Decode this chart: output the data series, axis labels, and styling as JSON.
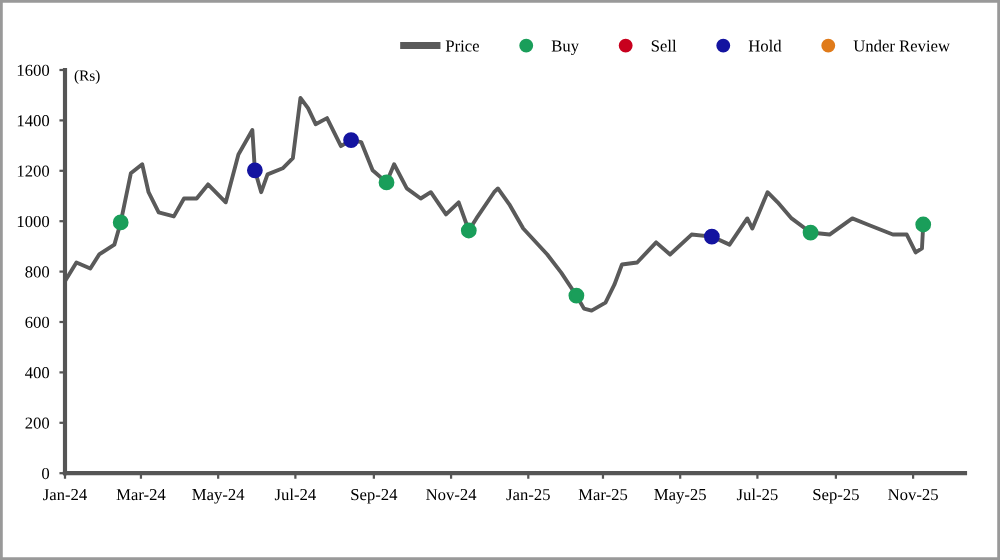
{
  "chart_data": {
    "type": "line",
    "ylabel": "(Rs)",
    "xlim": [
      "2024-01-01",
      "2025-12-12"
    ],
    "xticks": [
      {
        "value": "2024-01-01",
        "label": "Jan-24"
      },
      {
        "value": "2024-03-01",
        "label": "Mar-24"
      },
      {
        "value": "2024-05-01",
        "label": "May-24"
      },
      {
        "value": "2024-07-01",
        "label": "Jul-24"
      },
      {
        "value": "2024-09-01",
        "label": "Sep-24"
      },
      {
        "value": "2024-11-01",
        "label": "Nov-24"
      },
      {
        "value": "2025-01-01",
        "label": "Jan-25"
      },
      {
        "value": "2025-03-01",
        "label": "Mar-25"
      },
      {
        "value": "2025-05-01",
        "label": "May-25"
      },
      {
        "value": "2025-07-01",
        "label": "Jul-25"
      },
      {
        "value": "2025-09-01",
        "label": "Sep-25"
      },
      {
        "value": "2025-11-01",
        "label": "Nov-25"
      }
    ],
    "ylim": [
      0,
      1600
    ],
    "yticks": [
      0,
      200,
      400,
      600,
      800,
      1000,
      1200,
      1400,
      1600
    ],
    "grid": false,
    "legend": "top right",
    "series": [
      {
        "name": "Price",
        "color": "#5a5a5a",
        "line_style": "solid",
        "marker": "none",
        "x": [
          "2024-01-02",
          "2024-01-10",
          "2024-01-21",
          "2024-01-28",
          "2024-02-09",
          "2024-02-14",
          "2024-02-22",
          "2024-03-02",
          "2024-03-07",
          "2024-03-15",
          "2024-03-27",
          "2024-04-04",
          "2024-04-14",
          "2024-04-23",
          "2024-05-07",
          "2024-05-17",
          "2024-05-28",
          "2024-05-30",
          "2024-06-04",
          "2024-06-09",
          "2024-06-21",
          "2024-06-29",
          "2024-07-05",
          "2024-07-11",
          "2024-07-17",
          "2024-07-26",
          "2024-08-06",
          "2024-08-14",
          "2024-08-22",
          "2024-08-31",
          "2024-09-11",
          "2024-09-17",
          "2024-09-27",
          "2024-10-08",
          "2024-10-16",
          "2024-10-28",
          "2024-11-07",
          "2024-11-15",
          "2024-11-21",
          "2024-12-05",
          "2024-12-08",
          "2024-12-17",
          "2024-12-28",
          "2025-01-16",
          "2025-01-27",
          "2025-02-08",
          "2025-02-14",
          "2025-02-20",
          "2025-03-03",
          "2025-03-10",
          "2025-03-16",
          "2025-03-28",
          "2025-04-12",
          "2025-04-23",
          "2025-05-10",
          "2025-05-26",
          "2025-06-09",
          "2025-06-23",
          "2025-06-27",
          "2025-07-09",
          "2025-07-17",
          "2025-07-28",
          "2025-08-12",
          "2025-08-27",
          "2025-09-14",
          "2025-09-26",
          "2025-10-16",
          "2025-10-27",
          "2025-11-03",
          "2025-11-08",
          "2025-11-09"
        ],
        "values": [
          770,
          836,
          812,
          868,
          907,
          995,
          1190,
          1226,
          1115,
          1035,
          1019,
          1090,
          1090,
          1146,
          1075,
          1265,
          1362,
          1202,
          1115,
          1186,
          1210,
          1250,
          1489,
          1449,
          1385,
          1409,
          1298,
          1322,
          1314,
          1202,
          1154,
          1226,
          1130,
          1090,
          1115,
          1027,
          1075,
          963,
          1011,
          1115,
          1130,
          1067,
          971,
          868,
          796,
          705,
          653,
          645,
          677,
          748,
          828,
          836,
          916,
          868,
          947,
          939,
          907,
          1011,
          971,
          1115,
          1075,
          1011,
          955,
          947,
          1011,
          987,
          947,
          947,
          876,
          892,
          987
        ]
      },
      {
        "name": "Buy",
        "type": "scatter",
        "color": "#1a9e5a",
        "marker": "circle",
        "x": [
          "2024-02-14",
          "2024-09-11",
          "2024-11-15",
          "2025-02-08",
          "2025-08-12",
          "2025-11-09"
        ],
        "values": [
          995,
          1154,
          963,
          705,
          955,
          987
        ]
      },
      {
        "name": "Sell",
        "type": "scatter",
        "color": "#c8001e",
        "marker": "circle"
      },
      {
        "name": "Hold",
        "type": "scatter",
        "color": "#1414a0",
        "marker": "circle",
        "x": [
          "2024-05-30",
          "2024-08-14",
          "2025-05-26"
        ],
        "values": [
          1202,
          1322,
          939
        ]
      },
      {
        "name": "Under Review",
        "type": "scatter",
        "color": "#e07b1a",
        "marker": "circle"
      }
    ]
  }
}
